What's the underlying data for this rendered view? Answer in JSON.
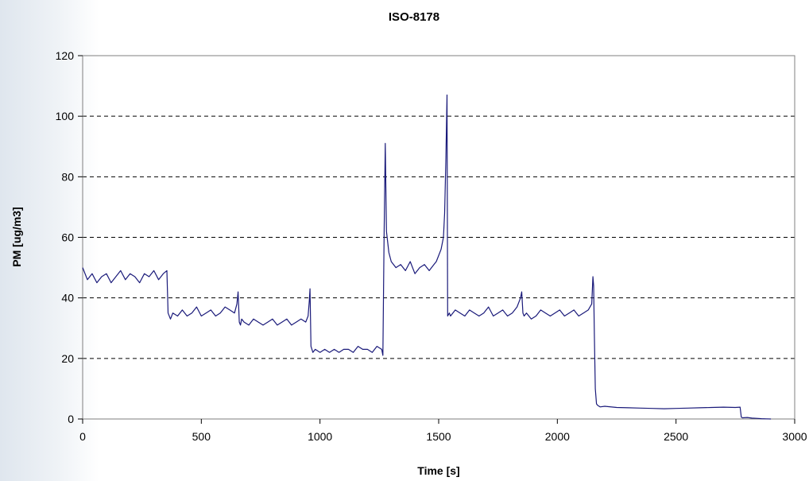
{
  "chart_data": {
    "type": "line",
    "title": "ISO-8178",
    "xlabel": "Time [s]",
    "ylabel": "PM [ug/m3]",
    "xlim": [
      0,
      3000
    ],
    "ylim": [
      0,
      120
    ],
    "x_ticks": [
      0,
      500,
      1000,
      1500,
      2000,
      2500,
      3000
    ],
    "y_ticks": [
      0,
      20,
      40,
      60,
      80,
      100,
      120
    ],
    "grid": "horizontal dashed",
    "legend": "none",
    "colors": {
      "series": "#1a1a7a",
      "grid": "#000000",
      "background": "#ffffff"
    },
    "series": [
      {
        "x": [
          0,
          20,
          40,
          60,
          80,
          100,
          120,
          140,
          160,
          180,
          200,
          220,
          240,
          260,
          280,
          300,
          320,
          340,
          355,
          360,
          370,
          380,
          400,
          420,
          440,
          460,
          480,
          500,
          520,
          540,
          560,
          580,
          600,
          620,
          640,
          650,
          655,
          660,
          665,
          670,
          680,
          700,
          720,
          740,
          760,
          780,
          800,
          820,
          840,
          860,
          880,
          900,
          920,
          940,
          950,
          955,
          958,
          962,
          970,
          980,
          1000,
          1020,
          1040,
          1060,
          1080,
          1100,
          1120,
          1140,
          1160,
          1180,
          1200,
          1220,
          1240,
          1260,
          1265,
          1270,
          1275,
          1280,
          1290,
          1300,
          1320,
          1340,
          1360,
          1380,
          1400,
          1420,
          1440,
          1460,
          1480,
          1490,
          1500,
          1510,
          1520,
          1525,
          1530,
          1535,
          1538,
          1545,
          1550,
          1570,
          1590,
          1610,
          1630,
          1650,
          1670,
          1690,
          1710,
          1730,
          1750,
          1770,
          1790,
          1810,
          1830,
          1845,
          1850,
          1855,
          1860,
          1870,
          1890,
          1910,
          1930,
          1950,
          1970,
          1990,
          2010,
          2030,
          2050,
          2070,
          2090,
          2110,
          2130,
          2145,
          2150,
          2153,
          2156,
          2160,
          2165,
          2170,
          2180,
          2200,
          2250,
          2300,
          2350,
          2400,
          2450,
          2500,
          2550,
          2600,
          2650,
          2700,
          2750,
          2770,
          2775,
          2780,
          2800,
          2820,
          2840,
          2860,
          2880,
          2900
        ],
        "y": [
          50,
          46,
          48,
          45,
          47,
          48,
          45,
          47,
          49,
          46,
          48,
          47,
          45,
          48,
          47,
          49,
          46,
          48,
          49,
          35,
          33,
          35,
          34,
          36,
          34,
          35,
          37,
          34,
          35,
          36,
          34,
          35,
          37,
          36,
          35,
          38,
          42,
          32,
          31,
          33,
          32,
          31,
          33,
          32,
          31,
          32,
          33,
          31,
          32,
          33,
          31,
          32,
          33,
          32,
          34,
          39,
          43,
          24,
          22,
          23,
          22,
          23,
          22,
          23,
          22,
          23,
          23,
          22,
          24,
          23,
          23,
          22,
          24,
          23,
          21,
          60,
          91,
          62,
          55,
          52,
          50,
          51,
          49,
          52,
          48,
          50,
          51,
          49,
          51,
          52,
          54,
          56,
          60,
          68,
          85,
          107,
          34,
          35,
          34,
          36,
          35,
          34,
          36,
          35,
          34,
          35,
          37,
          34,
          35,
          36,
          34,
          35,
          37,
          40,
          42,
          35,
          34,
          35,
          33,
          34,
          36,
          35,
          34,
          35,
          36,
          34,
          35,
          36,
          34,
          35,
          36,
          38,
          47,
          44,
          28,
          10,
          5,
          4.5,
          4,
          4.2,
          3.8,
          3.7,
          3.6,
          3.5,
          3.4,
          3.5,
          3.6,
          3.7,
          3.8,
          3.9,
          3.8,
          3.9,
          0.6,
          0.4,
          0.5,
          0.3,
          0.2,
          0.1,
          0.05,
          0.0
        ]
      }
    ]
  }
}
